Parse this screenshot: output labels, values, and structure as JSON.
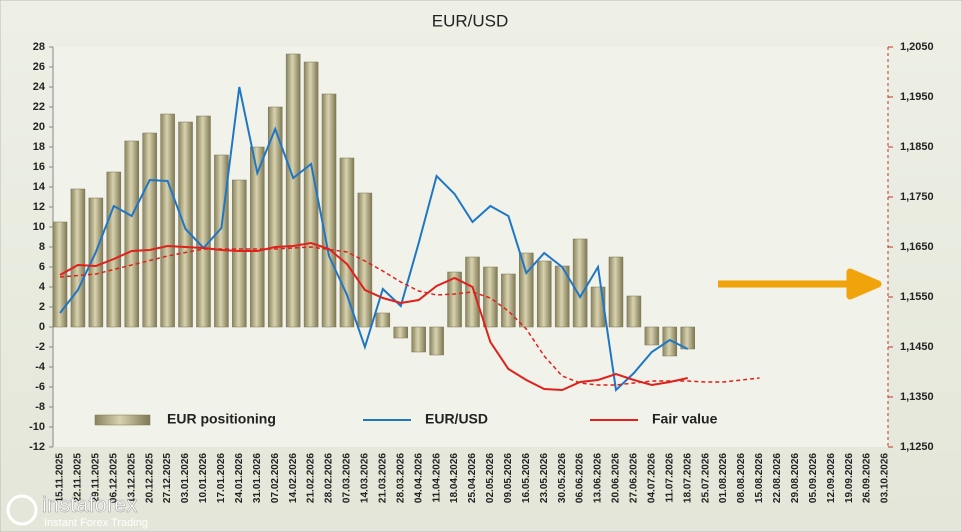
{
  "chart_data": {
    "type": "bar_line",
    "title": "EUR/USD",
    "categories": [
      "15.11.2025",
      "22.11.2025",
      "29.11.2025",
      "06.12.2025",
      "13.12.2025",
      "20.12.2025",
      "27.12.2025",
      "03.01.2026",
      "10.01.2026",
      "17.01.2026",
      "24.01.2026",
      "31.01.2026",
      "07.02.2026",
      "14.02.2026",
      "21.02.2026",
      "28.02.2026",
      "07.03.2026",
      "14.03.2026",
      "21.03.2026",
      "28.03.2026",
      "04.04.2026",
      "11.04.2026",
      "18.04.2026",
      "25.04.2026",
      "02.05.2026",
      "09.05.2026",
      "16.05.2026",
      "23.05.2026",
      "30.05.2026",
      "06.06.2026",
      "13.06.2026",
      "20.06.2026",
      "27.06.2026",
      "04.07.2026",
      "11.07.2026",
      "18.07.2026",
      "25.07.2026",
      "01.08.2026",
      "08.08.2026",
      "15.08.2026",
      "22.08.2026",
      "29.08.2026",
      "05.09.2026",
      "12.09.2026",
      "19.09.2026",
      "26.09.2026",
      "03.10.2026"
    ],
    "series": [
      {
        "name": "EUR positioning",
        "kind": "bar",
        "color": "#b5ad86",
        "values": [
          10.5,
          13.8,
          12.9,
          15.5,
          18.6,
          19.4,
          21.3,
          20.5,
          21.1,
          17.2,
          14.7,
          18.0,
          22.0,
          27.3,
          26.5,
          23.3,
          16.9,
          13.4,
          1.4,
          -1.1,
          -2.5,
          -2.8,
          5.5,
          7.0,
          6.0,
          5.3,
          7.4,
          6.6,
          6.1,
          8.8,
          4.0,
          7.0,
          3.1,
          -1.8,
          -2.9,
          -2.2,
          null,
          null,
          null,
          null,
          null,
          null,
          null,
          null,
          null,
          null,
          null
        ]
      },
      {
        "name": "EUR/USD",
        "kind": "line",
        "axis": "y2",
        "color": "#1f77c4",
        "values": [
          1.1518,
          1.1564,
          1.164,
          1.1732,
          1.1712,
          1.1784,
          1.1782,
          1.1686,
          1.1648,
          1.1688,
          1.197,
          1.1798,
          1.1886,
          1.1788,
          1.1816,
          1.1632,
          1.1554,
          1.145,
          1.1566,
          1.1532,
          1.1658,
          1.1792,
          1.1756,
          1.17,
          1.1732,
          1.1712,
          1.1598,
          1.1638,
          1.161,
          1.155,
          1.161,
          1.1364,
          1.1398,
          1.144,
          1.1464,
          1.1446,
          null,
          null,
          null,
          null,
          null,
          null,
          null,
          null,
          null,
          null,
          null
        ]
      },
      {
        "name": "Fair value",
        "kind": "line",
        "axis": "y2",
        "color": "#e0201b",
        "values": [
          1.1594,
          1.1614,
          1.1612,
          1.1626,
          1.1642,
          1.1644,
          1.1652,
          1.165,
          1.1648,
          1.1644,
          1.1642,
          1.1642,
          1.165,
          1.1652,
          1.1658,
          1.1646,
          1.1616,
          1.1564,
          1.1548,
          1.1538,
          1.1544,
          1.1572,
          1.1588,
          1.157,
          1.146,
          1.1406,
          1.1384,
          1.1366,
          1.1364,
          1.138,
          1.1384,
          1.1396,
          1.1384,
          1.1374,
          1.138,
          1.1388,
          null,
          null,
          null,
          null,
          null,
          null,
          null,
          null,
          null,
          null,
          null
        ]
      },
      {
        "kind": "line",
        "axis": "y2",
        "dashed": true,
        "color": "#e0201b",
        "values": [
          1.159,
          1.1593,
          1.1596,
          1.1605,
          1.1614,
          1.1623,
          1.1632,
          1.1639,
          1.1646,
          1.1646,
          1.1646,
          1.1646,
          1.1646,
          1.1648,
          1.165,
          1.1645,
          1.164,
          1.1622,
          1.1602,
          1.158,
          1.1562,
          1.1554,
          1.1556,
          1.156,
          1.1548,
          1.1522,
          1.1486,
          1.1432,
          1.1392,
          1.1378,
          1.1374,
          1.1374,
          1.1378,
          1.1382,
          1.1382,
          1.1382,
          1.138,
          1.138,
          1.1384,
          1.1388,
          null,
          null,
          null,
          null,
          null,
          null,
          null
        ]
      }
    ],
    "ylim": [
      -12,
      28
    ],
    "yticks": [
      -12,
      -10,
      -8,
      -6,
      -4,
      -2,
      0,
      2,
      4,
      6,
      8,
      10,
      12,
      14,
      16,
      18,
      20,
      22,
      24,
      26,
      28
    ],
    "y2lim": [
      1.125,
      1.205
    ],
    "y2ticks": [
      {
        "value": 1.125,
        "label": "1,1250"
      },
      {
        "value": 1.135,
        "label": "1,1350"
      },
      {
        "value": 1.145,
        "label": "1,1450"
      },
      {
        "value": 1.155,
        "label": "1,1550"
      },
      {
        "value": 1.165,
        "label": "1,1650"
      },
      {
        "value": 1.175,
        "label": "1,1750"
      },
      {
        "value": 1.185,
        "label": "1,1850"
      },
      {
        "value": 1.195,
        "label": "1,1950"
      },
      {
        "value": 1.205,
        "label": "1,2050"
      }
    ],
    "grid": false,
    "legend": "bottom"
  },
  "watermark": {
    "brand": "instaforex",
    "tagline": "Instant Forex Trading"
  }
}
